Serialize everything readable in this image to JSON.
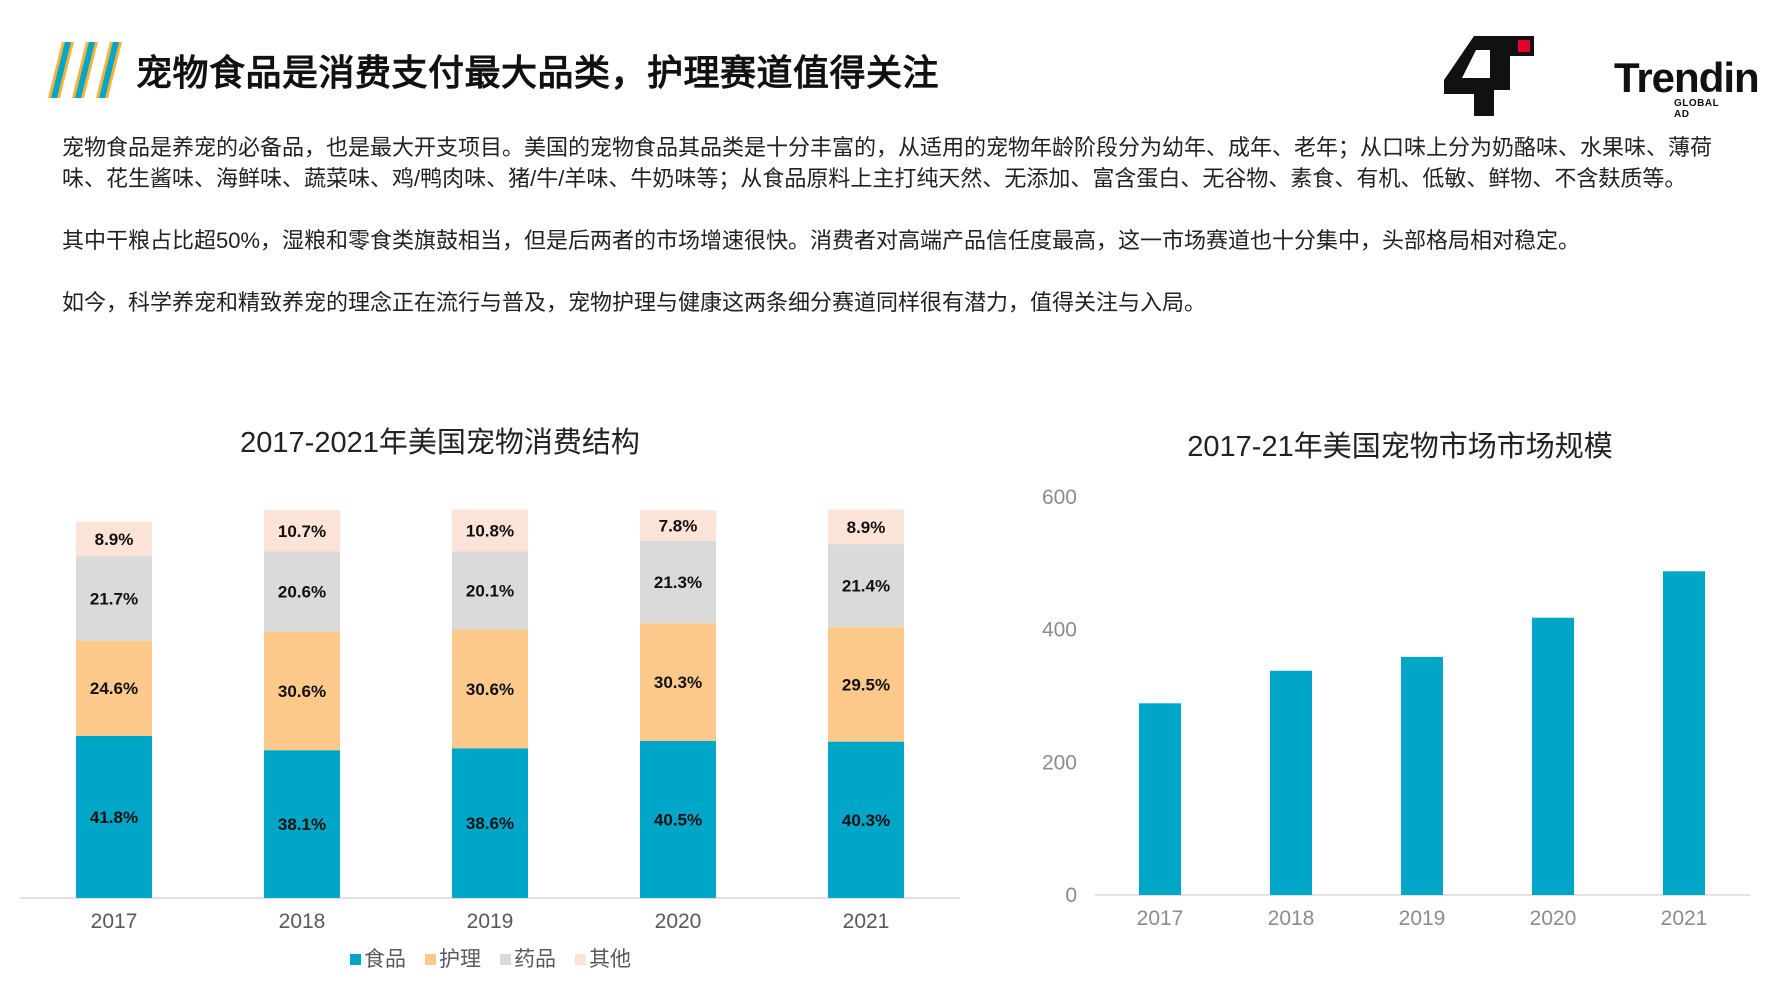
{
  "header": {
    "title": "宠物食品是消费支付最大品类，护理赛道值得关注",
    "logo": {
      "text": "Trendin",
      "sub": "GLOBAL AD",
      "icon": "trendin-logo-icon",
      "accent": "#e4002b"
    }
  },
  "paragraphs": [
    "宠物食品是养宠的必备品，也是最大开支项目。美国的宠物食品其品类是十分丰富的，从适用的宠物年龄阶段分为幼年、成年、老年；从口味上分为奶酪味、水果味、薄荷味、花生酱味、海鲜味、蔬菜味、鸡/鸭肉味、猪/牛/羊味、牛奶味等；从食品原料上主打纯天然、无添加、富含蛋白、无谷物、素食、有机、低敏、鲜物、不含麸质等。",
    "其中干粮占比超50%，湿粮和零食类旗鼓相当，但是后两者的市场增速很快。消费者对高端产品信任度最高，这一市场赛道也十分集中，头部格局相对稳定。",
    "如今，科学养宠和精致养宠的理念正在流行与普及，宠物护理与健康这两条细分赛道同样很有潜力，值得关注与入局。"
  ],
  "chart_data": [
    {
      "type": "bar",
      "stacked": true,
      "title": "2017-2021年美国宠物消费结构",
      "categories": [
        "2017",
        "2018",
        "2019",
        "2020",
        "2021"
      ],
      "series": [
        {
          "name": "食品",
          "color": "#00a6c8",
          "values": [
            41.8,
            38.1,
            38.6,
            40.5,
            40.3
          ],
          "labels": [
            "41.8%",
            "38.1%",
            "38.6%",
            "40.5%",
            "40.3%"
          ]
        },
        {
          "name": "护理",
          "color": "#fcc98b",
          "values": [
            24.6,
            30.6,
            30.6,
            30.3,
            29.5
          ],
          "labels": [
            "24.6%",
            "30.6%",
            "30.6%",
            "30.3%",
            "29.5%"
          ]
        },
        {
          "name": "药品",
          "color": "#dadada",
          "values": [
            21.7,
            20.6,
            20.1,
            21.3,
            21.4
          ],
          "labels": [
            "21.7%",
            "20.6%",
            "20.1%",
            "21.3%",
            "21.4%"
          ]
        },
        {
          "name": "其他",
          "color": "#fce3d7",
          "values": [
            8.9,
            10.7,
            10.8,
            7.8,
            8.9
          ],
          "labels": [
            "8.9%",
            "10.7%",
            "10.8%",
            "7.8%",
            "8.9%"
          ]
        }
      ],
      "legend": "bottom",
      "grid": false
    },
    {
      "type": "bar",
      "title": "2017-21年美国宠物市场市场规模",
      "categories": [
        "2017",
        "2018",
        "2019",
        "2020",
        "2021"
      ],
      "values": [
        289,
        338,
        359,
        418,
        488
      ],
      "ylim": [
        0,
        600
      ],
      "yticks": [
        "0",
        "200",
        "400",
        "600"
      ],
      "color": "#00a6c8",
      "grid": false
    }
  ]
}
